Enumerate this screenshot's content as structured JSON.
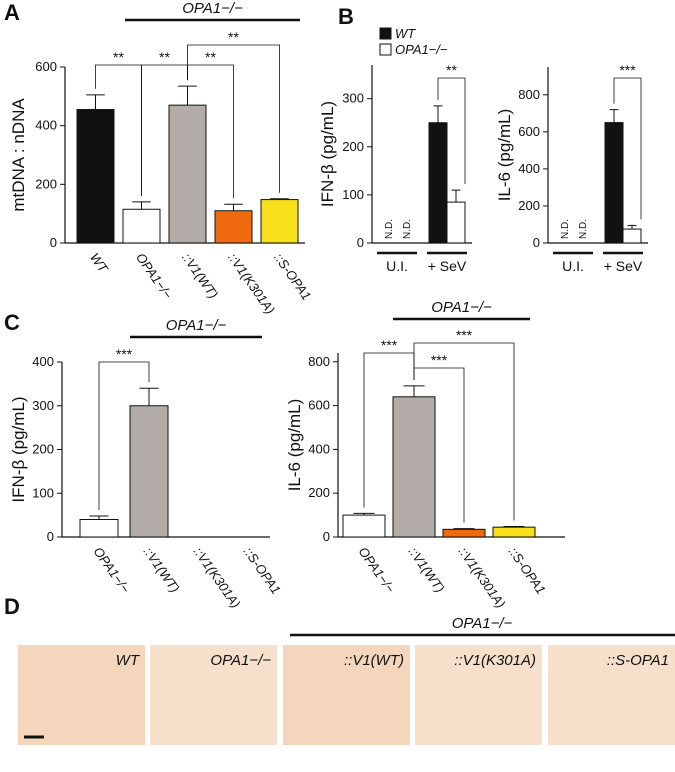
{
  "panel_labels": [
    "A",
    "B",
    "C",
    "D"
  ],
  "chart_data": [
    {
      "type": "bar",
      "ylabel": "mtDNA : nDNA",
      "group_label": "OPA1−/−",
      "categories": [
        "WT",
        "OPA1−/−",
        "::V1(WT)",
        "::V1(K301A)",
        "::S-OPA1"
      ],
      "values": [
        455,
        115,
        470,
        110,
        148
      ],
      "errors": [
        50,
        25,
        65,
        22,
        3
      ],
      "colors": [
        "#111111",
        "#ffffff",
        "#b3aca8",
        "#f0690f",
        "#f8e01c"
      ],
      "ylim": [
        0,
        600
      ],
      "yticks": [
        0,
        200,
        400,
        600
      ],
      "significance": [
        {
          "label": "**",
          "pair": [
            0,
            1
          ]
        },
        {
          "label": "**",
          "pair": [
            1,
            2
          ]
        },
        {
          "label": "**",
          "pair": [
            2,
            4
          ]
        },
        {
          "label": "**",
          "pair": [
            2,
            3
          ]
        }
      ]
    },
    {
      "type": "grouped_bar",
      "ylabel": "IFN-β (pg/mL)",
      "legend": true,
      "categories": [
        "U.I.",
        "+ SeV"
      ],
      "series": [
        {
          "name": "WT",
          "color": "#111111",
          "values": [
            null,
            250
          ],
          "errors": [
            null,
            35
          ],
          "value_labels": [
            "N.D.",
            null
          ]
        },
        {
          "name": "OPA1−/−",
          "color": "#ffffff",
          "values": [
            null,
            85
          ],
          "errors": [
            null,
            25
          ],
          "value_labels": [
            "N.D.",
            null
          ]
        }
      ],
      "ylim": [
        0,
        370
      ],
      "yticks": [
        0,
        100,
        200,
        300
      ],
      "significance": [
        {
          "label": "**",
          "category": 1,
          "series": [
            0,
            1
          ]
        }
      ]
    },
    {
      "type": "grouped_bar",
      "ylabel": "IL-6 (pg/mL)",
      "legend": false,
      "categories": [
        "U.I.",
        "+ SeV"
      ],
      "series": [
        {
          "name": "WT",
          "color": "#111111",
          "values": [
            null,
            650
          ],
          "errors": [
            null,
            70
          ],
          "value_labels": [
            "N.D.",
            null
          ]
        },
        {
          "name": "OPA1−/−",
          "color": "#ffffff",
          "values": [
            null,
            75
          ],
          "errors": [
            null,
            20
          ],
          "value_labels": [
            "N.D.",
            null
          ]
        }
      ],
      "ylim": [
        0,
        950
      ],
      "yticks": [
        0,
        200,
        400,
        600,
        800
      ],
      "significance": [
        {
          "label": "***",
          "category": 1,
          "series": [
            0,
            1
          ]
        }
      ]
    },
    {
      "type": "bar",
      "ylabel": "IFN-β (pg/mL)",
      "group_label": "OPA1−/−",
      "categories": [
        "OPA1−/−",
        "::V1(WT)",
        "::V1(K301A)",
        "::S-OPA1"
      ],
      "values": [
        40,
        300,
        null,
        null
      ],
      "errors": [
        8,
        40,
        null,
        null
      ],
      "colors": [
        "#ffffff",
        "#b3aca8",
        "#f0690f",
        "#f8e01c"
      ],
      "ylim": [
        0,
        400
      ],
      "yticks": [
        0,
        100,
        200,
        300,
        400
      ],
      "significance": [
        {
          "label": "***",
          "pair": [
            0,
            1
          ]
        }
      ]
    },
    {
      "type": "bar",
      "ylabel": "IL-6 (pg/mL)",
      "group_label": "OPA1−/−",
      "categories": [
        "OPA1−/−",
        "::V1(WT)",
        "::V1(K301A)",
        "::S-OPA1"
      ],
      "values": [
        100,
        640,
        35,
        45
      ],
      "errors": [
        8,
        50,
        3,
        3
      ],
      "colors": [
        "#ffffff",
        "#b3aca8",
        "#f0690f",
        "#f8e01c"
      ],
      "ylim": [
        0,
        840
      ],
      "yticks": [
        0,
        200,
        400,
        600,
        800
      ],
      "significance": [
        {
          "label": "***",
          "pair": [
            0,
            1
          ]
        },
        {
          "label": "***",
          "pair": [
            1,
            2
          ]
        },
        {
          "label": "***",
          "pair": [
            1,
            3
          ]
        }
      ]
    }
  ],
  "micrographs": {
    "group_label": "OPA1−/−",
    "panels": [
      "WT",
      "OPA1−/−",
      "::V1(WT)",
      "::V1(K301A)",
      "::S-OPA1"
    ]
  }
}
